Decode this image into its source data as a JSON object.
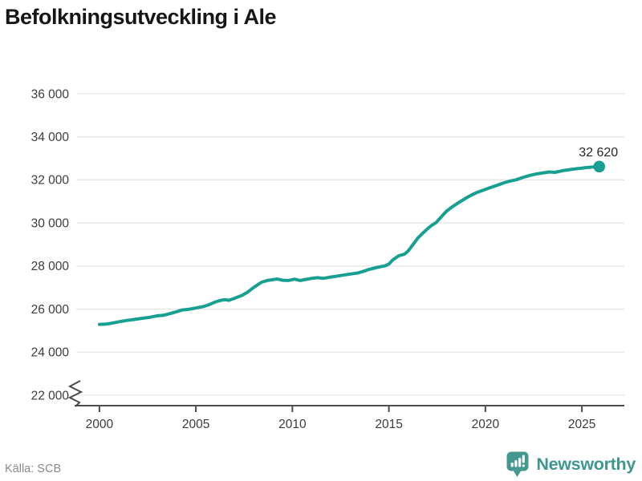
{
  "title": "Befolkningsutveckling i Ale",
  "source": "Källa: SCB",
  "branding": {
    "name": "Newsworthy",
    "icon": "bar-chart-speech-bubble-icon"
  },
  "end_label": "32 620",
  "colors": {
    "line": "#17a091",
    "dot": "#17a091",
    "grid": "#e4e4e4",
    "axis": "#4c4c4c",
    "tick_label": "#3c3c3c",
    "title": "#161616",
    "source": "#8b8b8b",
    "brand": "#3f968e",
    "value_label": "#262626",
    "background": "#ffffff"
  },
  "chart_data": {
    "type": "line",
    "title": "Befolkningsutveckling i Ale",
    "source": "SCB",
    "grid": "horizontal",
    "legend_position": "none",
    "y_axis_break": true,
    "xlim": [
      1998.8,
      2027.2
    ],
    "ylim": [
      22000,
      36000
    ],
    "x_ticks": [
      {
        "value": 2000,
        "label": "2000"
      },
      {
        "value": 2005,
        "label": "2005"
      },
      {
        "value": 2010,
        "label": "2010"
      },
      {
        "value": 2015,
        "label": "2015"
      },
      {
        "value": 2020,
        "label": "2020"
      },
      {
        "value": 2025,
        "label": "2025"
      }
    ],
    "y_ticks": [
      {
        "value": 36000,
        "label": "36 000"
      },
      {
        "value": 34000,
        "label": "34 000"
      },
      {
        "value": 32000,
        "label": "32 000"
      },
      {
        "value": 30000,
        "label": "30 000"
      },
      {
        "value": 28000,
        "label": "28 000"
      },
      {
        "value": 26000,
        "label": "26 000"
      },
      {
        "value": 24000,
        "label": "24 000"
      },
      {
        "value": 22000,
        "label": "22 000"
      }
    ],
    "series": [
      {
        "points": [
          [
            2000.0,
            25290
          ],
          [
            2000.3,
            25300
          ],
          [
            2000.6,
            25340
          ],
          [
            2001.0,
            25410
          ],
          [
            2001.4,
            25470
          ],
          [
            2001.8,
            25520
          ],
          [
            2002.2,
            25570
          ],
          [
            2002.6,
            25620
          ],
          [
            2003.0,
            25690
          ],
          [
            2003.3,
            25710
          ],
          [
            2003.7,
            25800
          ],
          [
            2004.0,
            25880
          ],
          [
            2004.3,
            25960
          ],
          [
            2004.7,
            26000
          ],
          [
            2005.0,
            26050
          ],
          [
            2005.4,
            26120
          ],
          [
            2005.7,
            26210
          ],
          [
            2006.0,
            26330
          ],
          [
            2006.3,
            26410
          ],
          [
            2006.5,
            26440
          ],
          [
            2006.7,
            26410
          ],
          [
            2007.0,
            26500
          ],
          [
            2007.4,
            26640
          ],
          [
            2007.7,
            26800
          ],
          [
            2008.0,
            27010
          ],
          [
            2008.4,
            27250
          ],
          [
            2008.7,
            27330
          ],
          [
            2009.0,
            27370
          ],
          [
            2009.2,
            27400
          ],
          [
            2009.5,
            27340
          ],
          [
            2009.8,
            27330
          ],
          [
            2010.1,
            27390
          ],
          [
            2010.4,
            27330
          ],
          [
            2010.7,
            27380
          ],
          [
            2011.0,
            27430
          ],
          [
            2011.3,
            27460
          ],
          [
            2011.6,
            27430
          ],
          [
            2012.0,
            27490
          ],
          [
            2012.5,
            27560
          ],
          [
            2013.0,
            27630
          ],
          [
            2013.4,
            27680
          ],
          [
            2013.7,
            27760
          ],
          [
            2014.0,
            27850
          ],
          [
            2014.4,
            27940
          ],
          [
            2014.8,
            28010
          ],
          [
            2015.0,
            28090
          ],
          [
            2015.2,
            28280
          ],
          [
            2015.5,
            28470
          ],
          [
            2015.8,
            28550
          ],
          [
            2016.0,
            28700
          ],
          [
            2016.25,
            29000
          ],
          [
            2016.5,
            29300
          ],
          [
            2016.75,
            29520
          ],
          [
            2017.0,
            29730
          ],
          [
            2017.2,
            29880
          ],
          [
            2017.45,
            30020
          ],
          [
            2017.7,
            30270
          ],
          [
            2018.0,
            30560
          ],
          [
            2018.3,
            30760
          ],
          [
            2018.6,
            30940
          ],
          [
            2019.0,
            31160
          ],
          [
            2019.3,
            31310
          ],
          [
            2019.6,
            31430
          ],
          [
            2020.0,
            31560
          ],
          [
            2020.3,
            31660
          ],
          [
            2020.7,
            31780
          ],
          [
            2021.0,
            31880
          ],
          [
            2021.3,
            31950
          ],
          [
            2021.6,
            32010
          ],
          [
            2022.0,
            32130
          ],
          [
            2022.3,
            32210
          ],
          [
            2022.6,
            32270
          ],
          [
            2023.0,
            32330
          ],
          [
            2023.3,
            32370
          ],
          [
            2023.6,
            32350
          ],
          [
            2024.0,
            32430
          ],
          [
            2024.4,
            32480
          ],
          [
            2024.8,
            32530
          ],
          [
            2025.0,
            32550
          ],
          [
            2025.3,
            32580
          ],
          [
            2025.6,
            32600
          ],
          [
            2025.9,
            32620
          ]
        ]
      }
    ],
    "last_point": {
      "x": 2025.9,
      "y": 32620,
      "label": "32 620"
    }
  }
}
